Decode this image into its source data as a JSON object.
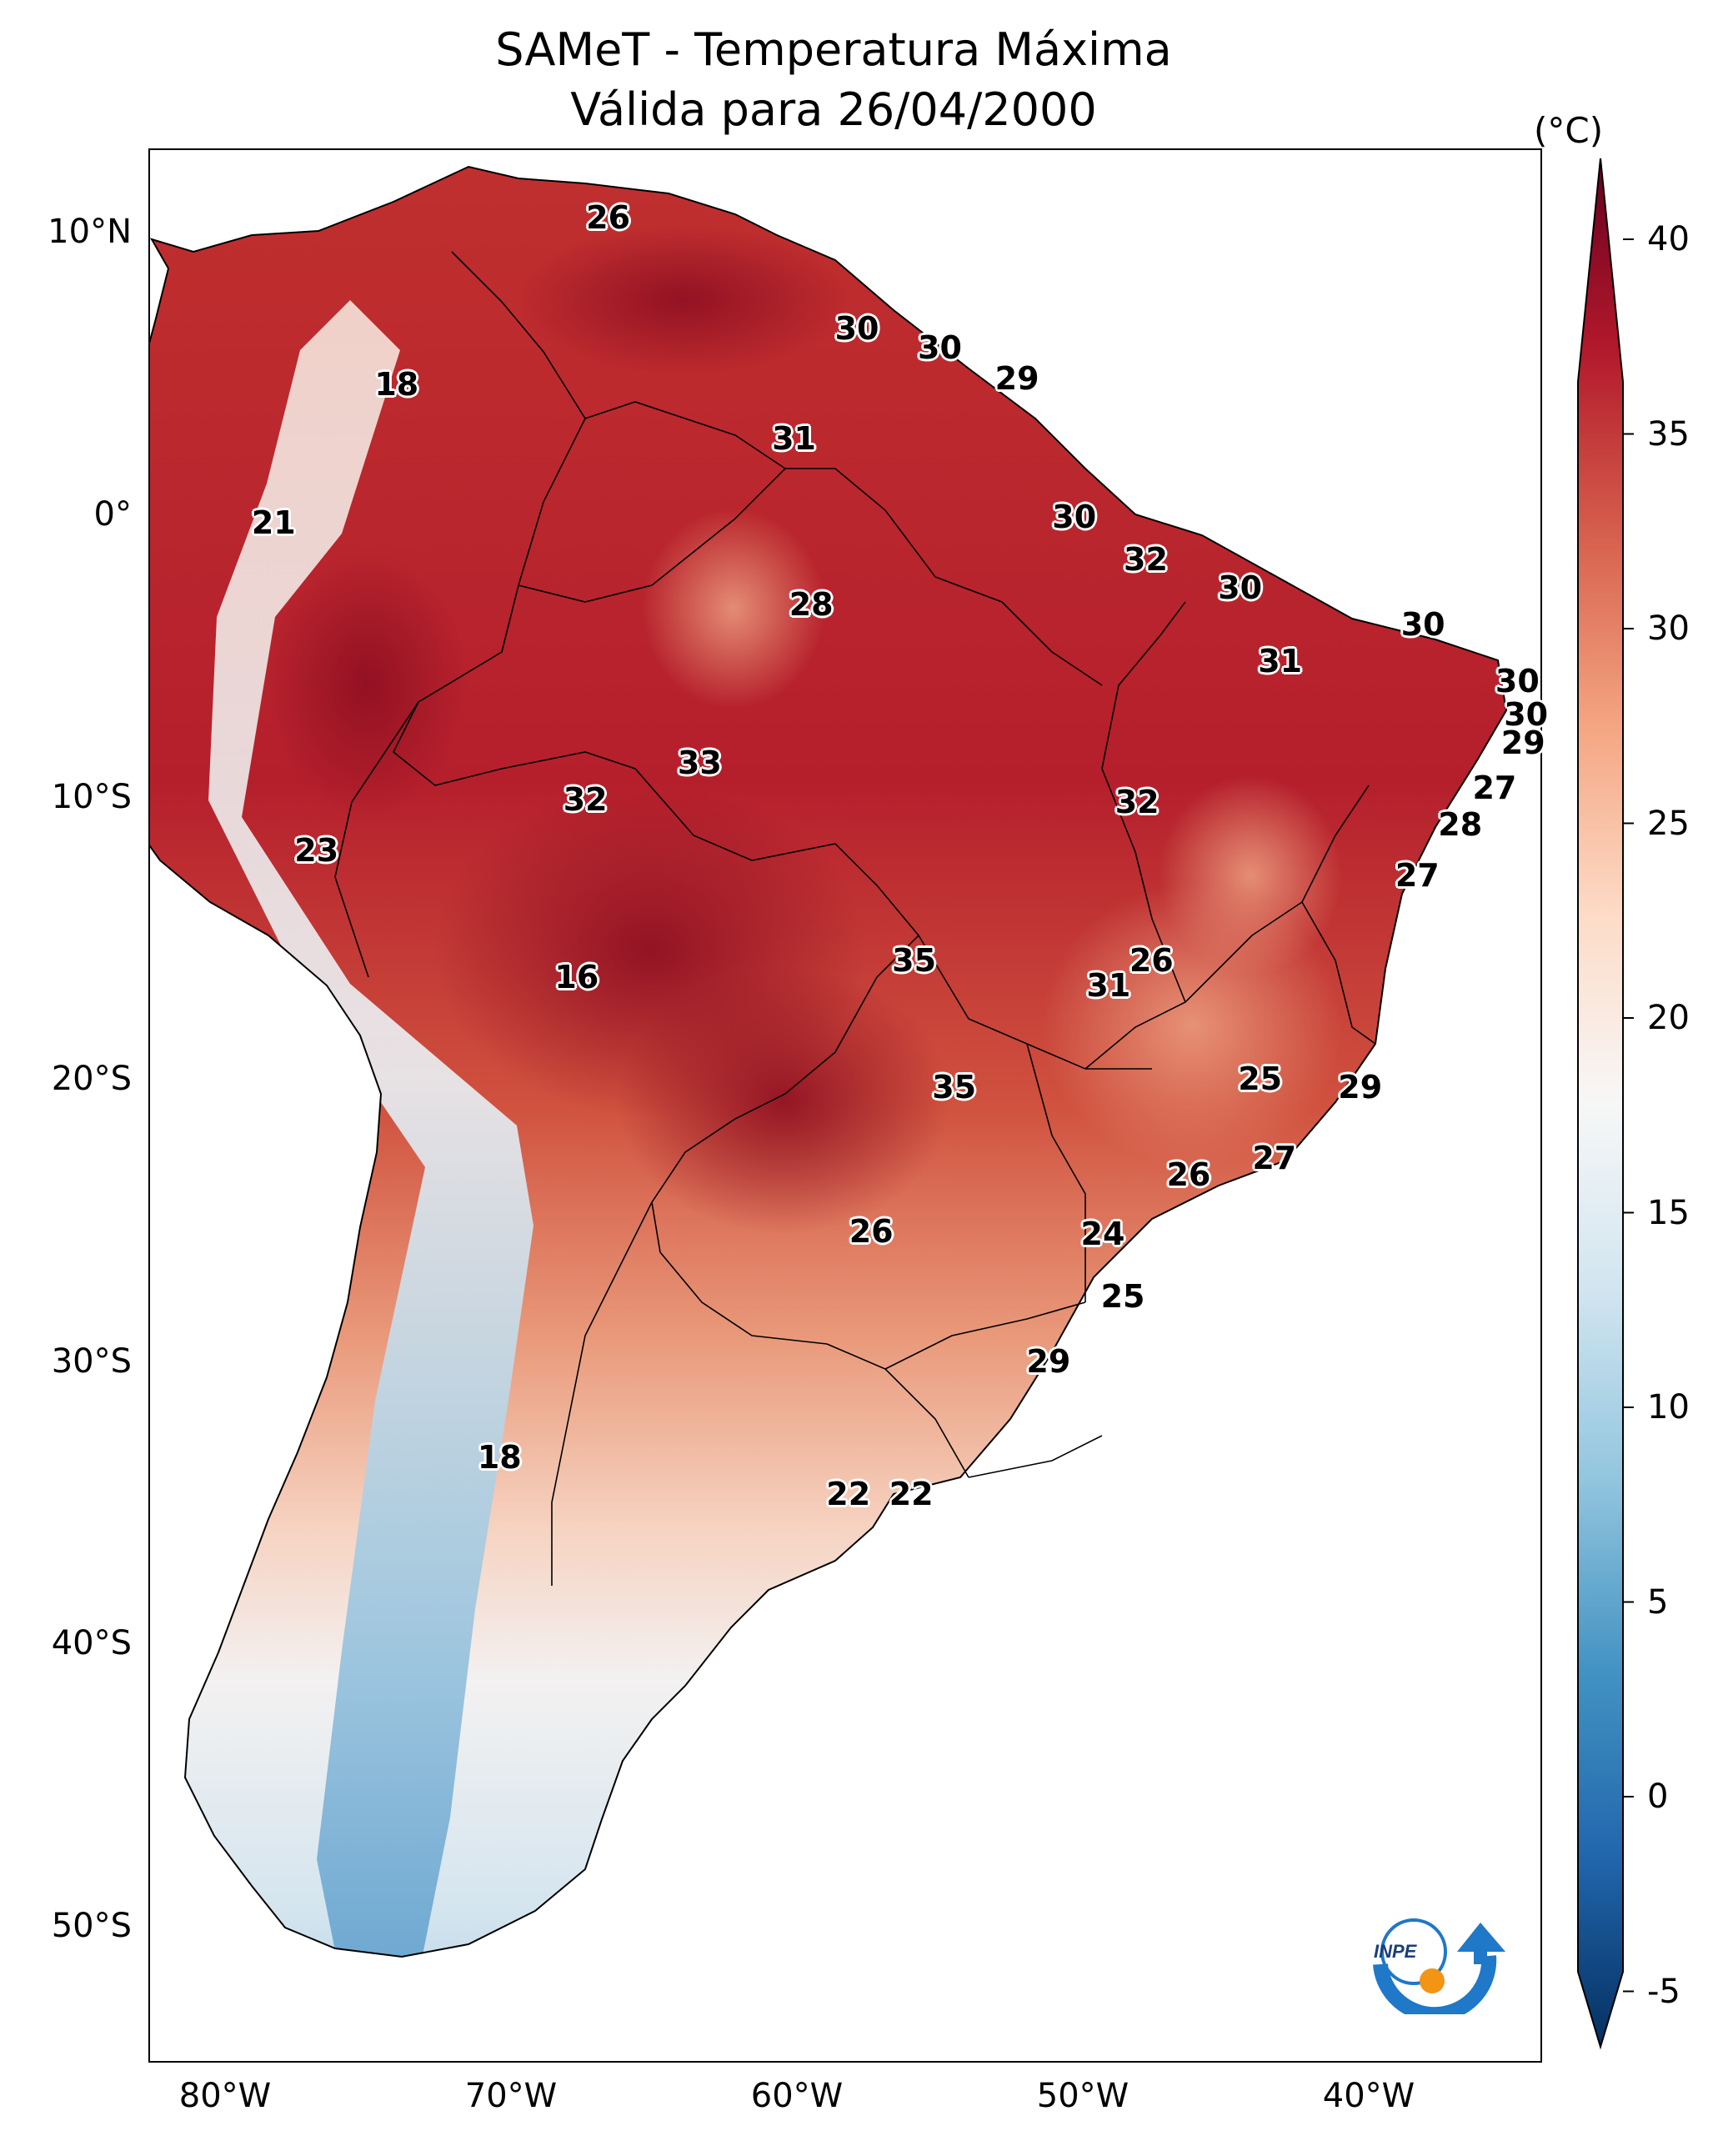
{
  "title": {
    "line1": "SAMeT - Temperatura Máxima",
    "line2": "Válida para 26/04/2000"
  },
  "colorbar": {
    "unit": "(°C)",
    "ticks": [
      "40",
      "35",
      "30",
      "25",
      "20",
      "15",
      "10",
      "5",
      "0",
      "-5"
    ],
    "colors": [
      "#67001f",
      "#b2182b",
      "#d6604d",
      "#f4a582",
      "#fddbc7",
      "#f7f7f7",
      "#d1e5f0",
      "#92c5de",
      "#4393c3",
      "#2166ac",
      "#053061"
    ]
  },
  "axes": {
    "lat_labels": [
      "10°N",
      "0°",
      "10°S",
      "20°S",
      "30°S",
      "40°S",
      "50°S"
    ],
    "lon_labels": [
      "80°W",
      "70°W",
      "60°W",
      "50°W",
      "40°W"
    ]
  },
  "contour_labels": [
    {
      "value": "26",
      "lon": -66.6,
      "lat": 10.5
    },
    {
      "value": "18",
      "lon": -74.0,
      "lat": 4.6
    },
    {
      "value": "30",
      "lon": -57.9,
      "lat": 6.6
    },
    {
      "value": "30",
      "lon": -55.0,
      "lat": 5.9
    },
    {
      "value": "29",
      "lon": -52.3,
      "lat": 4.8
    },
    {
      "value": "31",
      "lon": -60.1,
      "lat": 2.7
    },
    {
      "value": "21",
      "lon": -78.3,
      "lat": -0.3
    },
    {
      "value": "30",
      "lon": -50.3,
      "lat": -0.1
    },
    {
      "value": "32",
      "lon": -47.8,
      "lat": -1.6
    },
    {
      "value": "28",
      "lon": -59.5,
      "lat": -3.2
    },
    {
      "value": "30",
      "lon": -44.5,
      "lat": -2.6
    },
    {
      "value": "30",
      "lon": -38.1,
      "lat": -3.9
    },
    {
      "value": "31",
      "lon": -43.1,
      "lat": -5.2
    },
    {
      "value": "30",
      "lon": -34.8,
      "lat": -5.9
    },
    {
      "value": "30",
      "lon": -34.5,
      "lat": -7.1
    },
    {
      "value": "29",
      "lon": -34.6,
      "lat": -8.1
    },
    {
      "value": "33",
      "lon": -63.4,
      "lat": -8.8
    },
    {
      "value": "32",
      "lon": -67.4,
      "lat": -10.1
    },
    {
      "value": "32",
      "lon": -48.1,
      "lat": -10.2
    },
    {
      "value": "27",
      "lon": -35.6,
      "lat": -9.7
    },
    {
      "value": "28",
      "lon": -36.8,
      "lat": -11.0
    },
    {
      "value": "23",
      "lon": -76.8,
      "lat": -11.9
    },
    {
      "value": "27",
      "lon": -38.3,
      "lat": -12.8
    },
    {
      "value": "35",
      "lon": -55.9,
      "lat": -15.8
    },
    {
      "value": "26",
      "lon": -47.6,
      "lat": -15.8
    },
    {
      "value": "31",
      "lon": -49.1,
      "lat": -16.7
    },
    {
      "value": "16",
      "lon": -67.7,
      "lat": -16.4
    },
    {
      "value": "25",
      "lon": -43.8,
      "lat": -20.0
    },
    {
      "value": "35",
      "lon": -54.5,
      "lat": -20.3
    },
    {
      "value": "29",
      "lon": -40.3,
      "lat": -20.3
    },
    {
      "value": "27",
      "lon": -43.3,
      "lat": -22.8
    },
    {
      "value": "26",
      "lon": -46.3,
      "lat": -23.4
    },
    {
      "value": "26",
      "lon": -57.4,
      "lat": -25.4
    },
    {
      "value": "24",
      "lon": -49.3,
      "lat": -25.5
    },
    {
      "value": "25",
      "lon": -48.6,
      "lat": -27.7
    },
    {
      "value": "29",
      "lon": -51.2,
      "lat": -30.0
    },
    {
      "value": "18",
      "lon": -70.4,
      "lat": -33.4
    },
    {
      "value": "22",
      "lon": -58.2,
      "lat": -34.7
    },
    {
      "value": "22",
      "lon": -56.0,
      "lat": -34.7
    }
  ]
}
